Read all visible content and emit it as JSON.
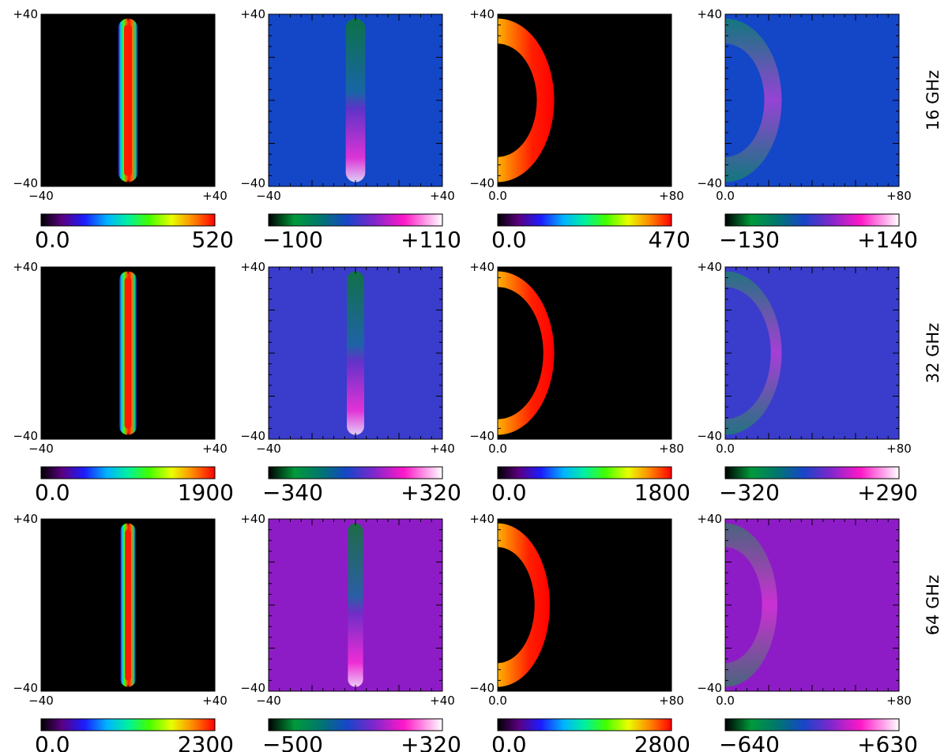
{
  "colors": {
    "background": "#000000",
    "stokes_v_background_16": "#1446c8",
    "stokes_v_background_32": "#3a3ccc",
    "stokes_v_background_64": "#8e1cc6"
  },
  "chart_data": {
    "type": "heatmap",
    "title": "",
    "rows": [
      {
        "label": "16 GHz",
        "panels": [
          {
            "kind": "stokes_i_edge_on",
            "palette": "rainbow",
            "xlim": [
              -40,
              40
            ],
            "ylim": [
              -40,
              40
            ],
            "xticklabels": [
              "−40",
              "+40"
            ],
            "yticklabels": [
              "+40",
              "−40"
            ],
            "colorbar": {
              "min": "0.0",
              "max": "520"
            }
          },
          {
            "kind": "stokes_v_edge_on",
            "palette": "diverging",
            "xlim": [
              -40,
              40
            ],
            "ylim": [
              -40,
              40
            ],
            "xticklabels": [
              "−40",
              "+40"
            ],
            "yticklabels": [
              "+40",
              "−40"
            ],
            "colorbar": {
              "min": "−100",
              "max": "+110"
            }
          },
          {
            "kind": "stokes_i_face_on",
            "palette": "rainbow",
            "xlim": [
              0,
              80
            ],
            "ylim": [
              -40,
              40
            ],
            "xticklabels": [
              "0.0",
              "+80"
            ],
            "yticklabels": [
              "+40",
              "−40"
            ],
            "colorbar": {
              "min": "0.0",
              "max": "470"
            }
          },
          {
            "kind": "stokes_v_face_on",
            "palette": "diverging",
            "xlim": [
              0,
              80
            ],
            "ylim": [
              -40,
              40
            ],
            "xticklabels": [
              "0.0",
              "+80"
            ],
            "yticklabels": [
              "+40",
              "−40"
            ],
            "colorbar": {
              "min": "−130",
              "max": "+140"
            }
          }
        ]
      },
      {
        "label": "32 GHz",
        "panels": [
          {
            "kind": "stokes_i_edge_on",
            "palette": "rainbow",
            "xlim": [
              -40,
              40
            ],
            "ylim": [
              -40,
              40
            ],
            "xticklabels": [
              "−40",
              "+40"
            ],
            "yticklabels": [
              "+40",
              "−40"
            ],
            "colorbar": {
              "min": "0.0",
              "max": "1900"
            }
          },
          {
            "kind": "stokes_v_edge_on",
            "palette": "diverging",
            "xlim": [
              -40,
              40
            ],
            "ylim": [
              -40,
              40
            ],
            "xticklabels": [
              "−40",
              "+40"
            ],
            "yticklabels": [
              "+40",
              "−40"
            ],
            "colorbar": {
              "min": "−340",
              "max": "+320"
            }
          },
          {
            "kind": "stokes_i_face_on",
            "palette": "rainbow",
            "xlim": [
              0,
              80
            ],
            "ylim": [
              -40,
              40
            ],
            "xticklabels": [
              "0.0",
              "+80"
            ],
            "yticklabels": [
              "+40",
              "−40"
            ],
            "colorbar": {
              "min": "0.0",
              "max": "1800"
            }
          },
          {
            "kind": "stokes_v_face_on",
            "palette": "diverging",
            "xlim": [
              0,
              80
            ],
            "ylim": [
              -40,
              40
            ],
            "xticklabels": [
              "0.0",
              "+80"
            ],
            "yticklabels": [
              "+40",
              "−40"
            ],
            "colorbar": {
              "min": "−320",
              "max": "+290"
            }
          }
        ]
      },
      {
        "label": "64 GHz",
        "panels": [
          {
            "kind": "stokes_i_edge_on",
            "palette": "rainbow",
            "xlim": [
              -40,
              40
            ],
            "ylim": [
              -40,
              40
            ],
            "xticklabels": [
              "−40",
              "+40"
            ],
            "yticklabels": [
              "+40",
              "−40"
            ],
            "colorbar": {
              "min": "0.0",
              "max": "2300"
            }
          },
          {
            "kind": "stokes_v_edge_on",
            "palette": "diverging",
            "xlim": [
              -40,
              40
            ],
            "ylim": [
              -40,
              40
            ],
            "xticklabels": [
              "−40",
              "+40"
            ],
            "yticklabels": [
              "+40",
              "−40"
            ],
            "colorbar": {
              "min": "−500",
              "max": "+320"
            }
          },
          {
            "kind": "stokes_i_face_on",
            "palette": "rainbow",
            "xlim": [
              0,
              80
            ],
            "ylim": [
              -40,
              40
            ],
            "xticklabels": [
              "0.0",
              "+80"
            ],
            "yticklabels": [
              "+40",
              "−40"
            ],
            "colorbar": {
              "min": "0.0",
              "max": "2800"
            }
          },
          {
            "kind": "stokes_v_face_on",
            "palette": "diverging",
            "xlim": [
              0,
              80
            ],
            "ylim": [
              -40,
              40
            ],
            "xticklabels": [
              "0.0",
              "+80"
            ],
            "yticklabels": [
              "+40",
              "−40"
            ],
            "colorbar": {
              "min": "−640",
              "max": "+630"
            }
          }
        ]
      }
    ]
  }
}
